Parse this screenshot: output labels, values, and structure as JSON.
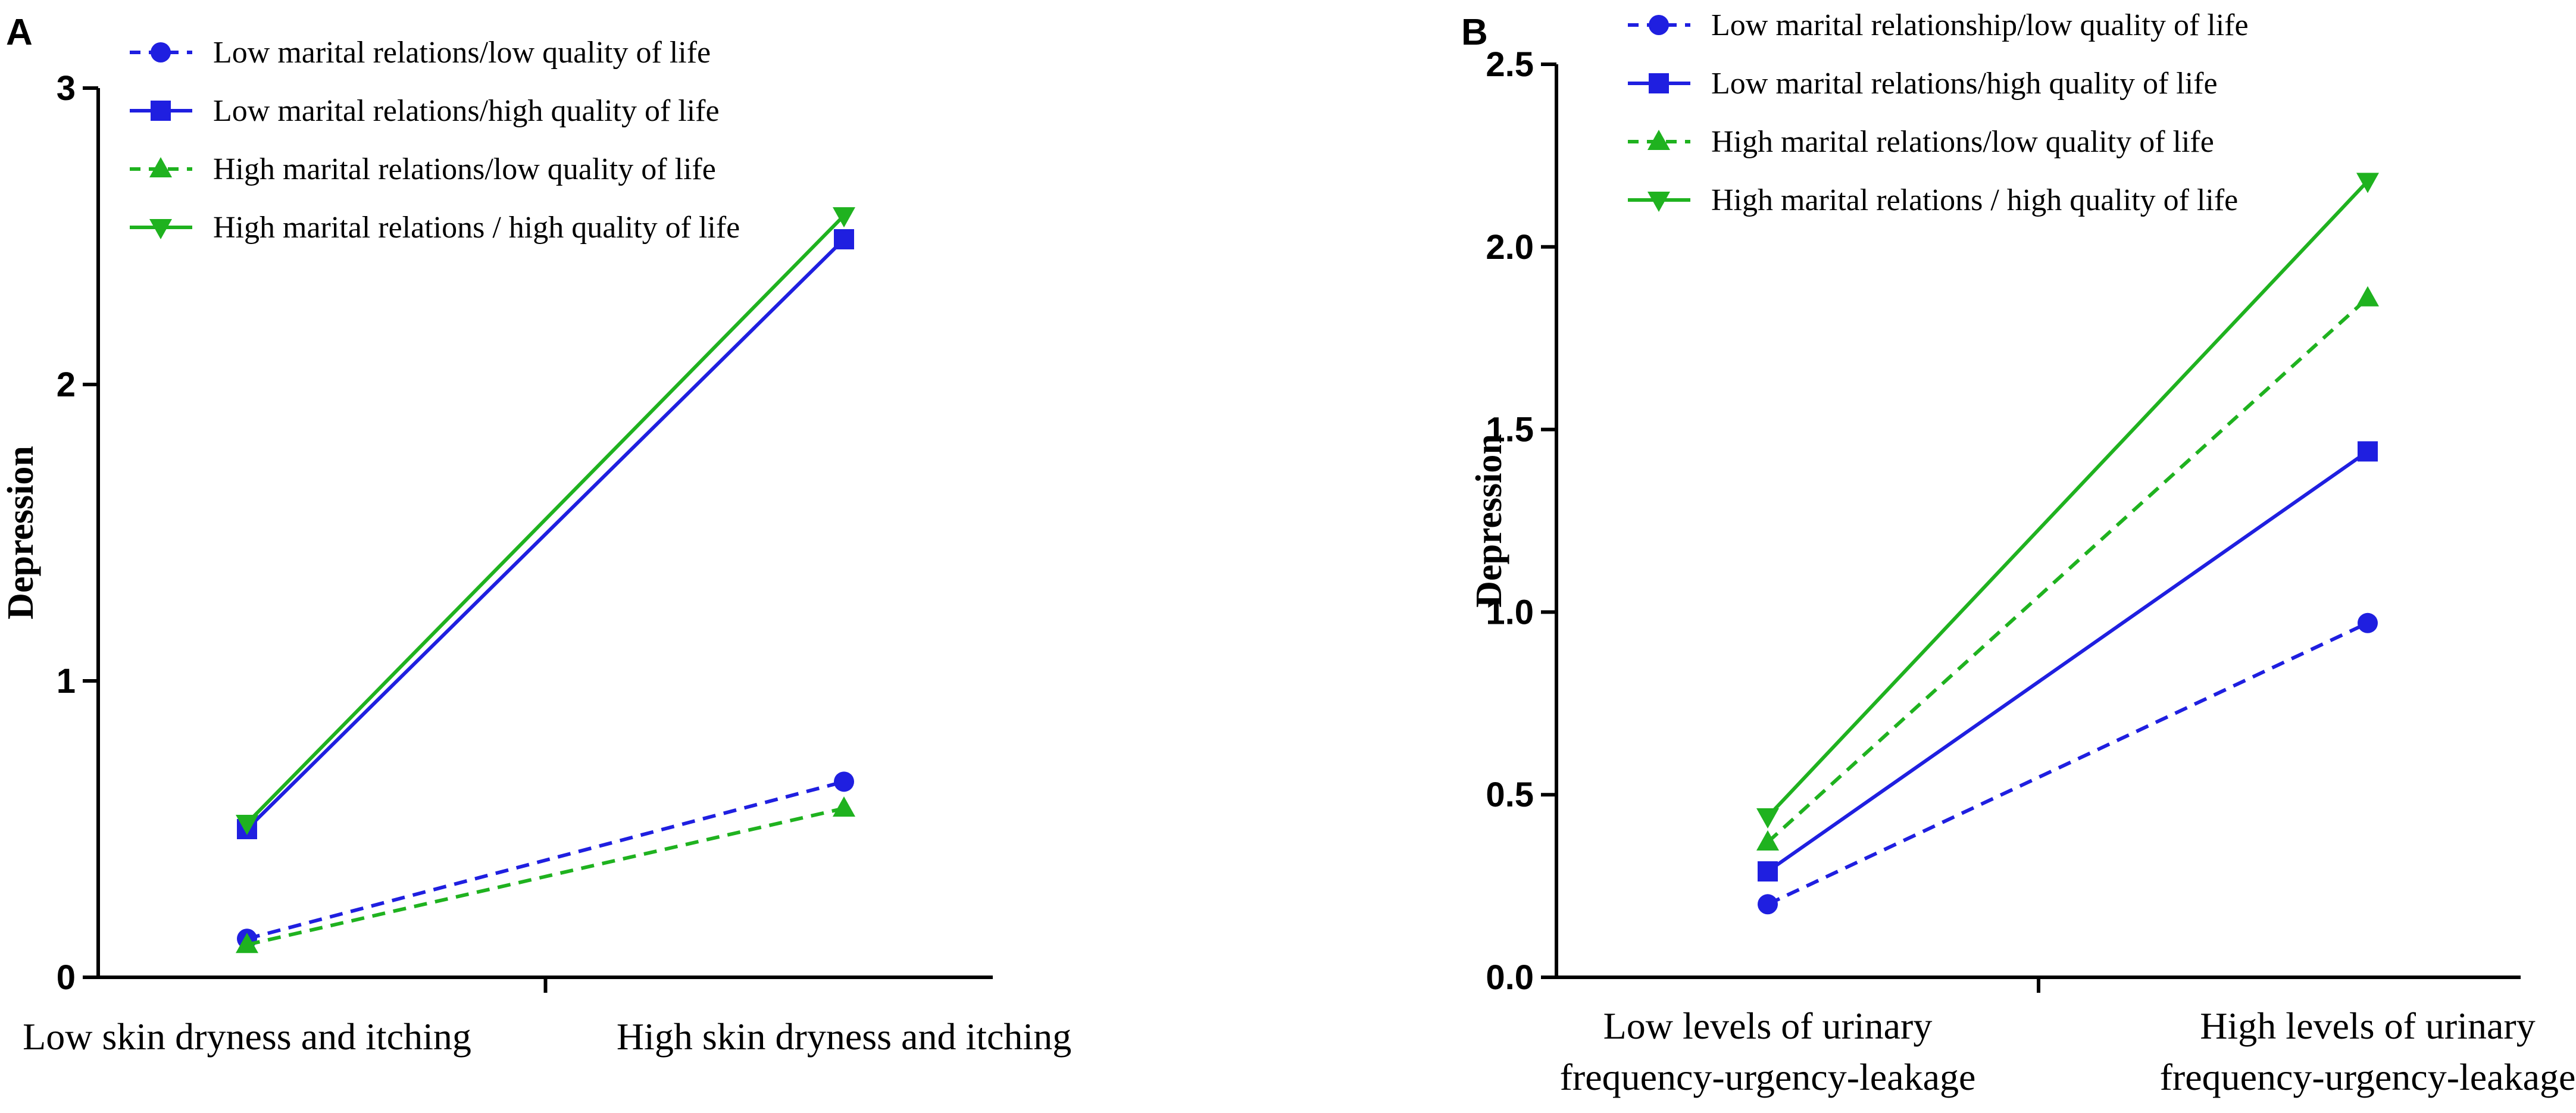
{
  "chart_data": [
    {
      "panel": "A",
      "type": "line",
      "ylabel": "Depression",
      "ylim": [
        0,
        3
      ],
      "yticks": [
        "0",
        "1",
        "2",
        "3"
      ],
      "categories": [
        "Low skin dryness and itching",
        "High skin dryness and itching"
      ],
      "series": [
        {
          "name": "Low marital relations/low quality of life",
          "color": "#1f1fe0",
          "marker": "circle",
          "dashed": true,
          "values": [
            0.13,
            0.66
          ]
        },
        {
          "name": "Low marital relations/high quality of life",
          "color": "#1f1fe0",
          "marker": "square",
          "dashed": false,
          "values": [
            0.5,
            2.49
          ]
        },
        {
          "name": "High marital relations/low quality of life",
          "color": "#1fb21f",
          "marker": "triangle-up",
          "dashed": true,
          "values": [
            0.11,
            0.57
          ]
        },
        {
          "name": "High marital relations / high quality of life",
          "color": "#1fb21f",
          "marker": "triangle-down",
          "dashed": false,
          "values": [
            0.52,
            2.57
          ]
        }
      ]
    },
    {
      "panel": "B",
      "type": "line",
      "ylabel": "Depression",
      "ylim": [
        0,
        2.5
      ],
      "yticks": [
        "0.0",
        "0.5",
        "1.0",
        "1.5",
        "2.0",
        "2.5"
      ],
      "categories": [
        [
          "Low levels of urinary",
          "frequency-urgency-leakage"
        ],
        [
          "High levels of urinary",
          "frequency-urgency-leakage"
        ]
      ],
      "series": [
        {
          "name": "Low marital relationship/low quality of life",
          "color": "#1f1fe0",
          "marker": "circle",
          "dashed": true,
          "values": [
            0.2,
            0.97
          ]
        },
        {
          "name": "Low marital relations/high quality of life",
          "color": "#1f1fe0",
          "marker": "square",
          "dashed": false,
          "values": [
            0.29,
            1.44
          ]
        },
        {
          "name": "High marital relations/low quality of life",
          "color": "#1fb21f",
          "marker": "triangle-up",
          "dashed": true,
          "values": [
            0.37,
            1.86
          ]
        },
        {
          "name": "High marital relations / high quality of life",
          "color": "#1fb21f",
          "marker": "triangle-down",
          "dashed": false,
          "values": [
            0.44,
            2.18
          ]
        }
      ]
    }
  ]
}
